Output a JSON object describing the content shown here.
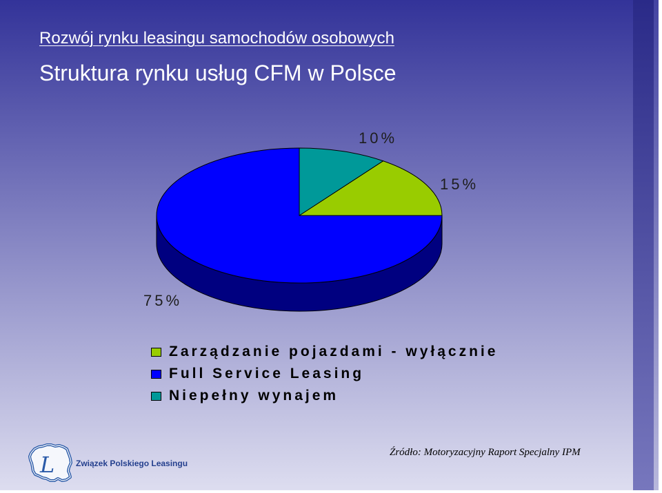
{
  "slide": {
    "title": "Rozwój rynku leasingu samochodów osobowych"
  },
  "chart_data": {
    "type": "pie",
    "three_d": true,
    "title": "Struktura rynku usług CFM w Polsce",
    "categories": [
      "Zarządzanie pojazdami - wyłącznie",
      "Full Service Leasing",
      "Niepełny wynajem"
    ],
    "values": [
      15,
      75,
      10
    ],
    "data_labels": [
      "15%",
      "75%",
      "10%"
    ],
    "colors": [
      "#99cc00",
      "#0000ff",
      "#009999"
    ],
    "legend_position": "bottom"
  },
  "source": "Źródło: Motoryzacyjny Raport Specjalny IPM",
  "logo": {
    "icon": "zpl-logo-icon",
    "mark_letter": "L",
    "text": "Związek Polskiego Leasingu"
  },
  "theme": {
    "background_top": "#333399",
    "background_bottom": "#dedef0",
    "title_color": "#ffffff"
  }
}
